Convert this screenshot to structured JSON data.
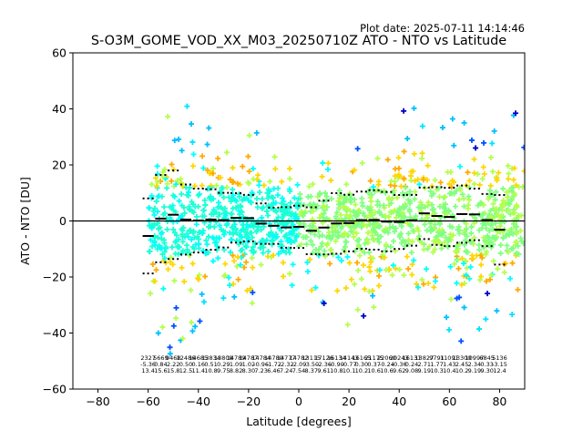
{
  "header": {
    "plot_date": "Plot date: 2025-07-11 14:14:46",
    "title": "S-O3M_GOME_VOD_XX_M03_20250710Z ATO - NTO vs Latitude"
  },
  "chart_data": {
    "type": "scatter",
    "title": "S-O3M_GOME_VOD_XX_M03_20250710Z ATO - NTO vs Latitude",
    "xlabel": "Latitude [degrees]",
    "ylabel": "ATO - NTO [DU]",
    "xlim": [
      -90,
      90
    ],
    "ylim": [
      -60,
      60
    ],
    "x_ticks": [
      -80,
      -60,
      -40,
      -20,
      0,
      20,
      40,
      60,
      80
    ],
    "y_ticks": [
      -60,
      -40,
      -20,
      0,
      20,
      40,
      60
    ],
    "x_tick_labels": [
      "−80",
      "−60",
      "−40",
      "−20",
      "0",
      "20",
      "40",
      "60",
      "80"
    ],
    "y_tick_labels": [
      "−60",
      "−40",
      "−20",
      "0",
      "20",
      "40",
      "60"
    ],
    "grid": false,
    "zero_line": 0,
    "marker": "+",
    "scatter_envelope": [
      {
        "lat": -60,
        "hi": 10,
        "lo": -40
      },
      {
        "lat": -55,
        "hi": 28,
        "lo": -44
      },
      {
        "lat": -50,
        "hi": 50,
        "lo": -50
      },
      {
        "lat": -45,
        "hi": 45,
        "lo": -52
      },
      {
        "lat": -40,
        "hi": 34,
        "lo": -42
      },
      {
        "lat": -35,
        "hi": 40,
        "lo": -30
      },
      {
        "lat": -30,
        "hi": 33,
        "lo": -28
      },
      {
        "lat": -25,
        "hi": 30,
        "lo": -28
      },
      {
        "lat": -20,
        "hi": 36,
        "lo": -32
      },
      {
        "lat": -15,
        "hi": 30,
        "lo": -28
      },
      {
        "lat": -10,
        "hi": 24,
        "lo": -26
      },
      {
        "lat": -5,
        "hi": 20,
        "lo": -24
      },
      {
        "lat": 0,
        "hi": 22,
        "lo": -25
      },
      {
        "lat": 5,
        "hi": 24,
        "lo": -28
      },
      {
        "lat": 10,
        "hi": 26,
        "lo": -30
      },
      {
        "lat": 15,
        "hi": 28,
        "lo": -34
      },
      {
        "lat": 20,
        "hi": 28,
        "lo": -38
      },
      {
        "lat": 25,
        "hi": 30,
        "lo": -36
      },
      {
        "lat": 30,
        "hi": 30,
        "lo": -34
      },
      {
        "lat": 35,
        "hi": 32,
        "lo": -34
      },
      {
        "lat": 40,
        "hi": 42,
        "lo": -32
      },
      {
        "lat": 45,
        "hi": 45,
        "lo": -34
      },
      {
        "lat": 50,
        "hi": 36,
        "lo": -36
      },
      {
        "lat": 55,
        "hi": 32,
        "lo": -36
      },
      {
        "lat": 60,
        "hi": 36,
        "lo": -40
      },
      {
        "lat": 65,
        "hi": 42,
        "lo": -44
      },
      {
        "lat": 70,
        "hi": 40,
        "lo": -40
      },
      {
        "lat": 75,
        "hi": 36,
        "lo": -38
      },
      {
        "lat": 80,
        "hi": 38,
        "lo": -36
      },
      {
        "lat": 85,
        "hi": 42,
        "lo": -34
      },
      {
        "lat": 90,
        "hi": 30,
        "lo": -34
      }
    ],
    "scatter_colors": [
      "#00ffff",
      "#1affd5",
      "#80ff80",
      "#b3ff4d",
      "#ffd700",
      "#ffaa00",
      "#00bfff",
      "#0050ff",
      "#0000c8",
      "#00e5ff"
    ],
    "bins": [
      {
        "lat": -60,
        "mean": -5.36,
        "std": 13.4,
        "count": "2327"
      },
      {
        "lat": -55,
        "mean": 0.84,
        "std": 15.6,
        "count": "5669"
      },
      {
        "lat": -50,
        "mean": 2.22,
        "std": 15.8,
        "count": "9468"
      },
      {
        "lat": -45,
        "mean": 0.5,
        "std": 12.5,
        "count": "12486"
      },
      {
        "lat": -40,
        "mean": 0.16,
        "std": 11.4,
        "count": "14685"
      },
      {
        "lat": -35,
        "mean": 0.51,
        "std": 10.8,
        "count": "13834"
      },
      {
        "lat": -30,
        "mean": 0.29,
        "std": 9.75,
        "count": "13808"
      },
      {
        "lat": -25,
        "mean": 1.09,
        "std": 8.82,
        "count": "14789"
      },
      {
        "lat": -20,
        "mean": 1.02,
        "std": 8.3,
        "count": "14787"
      },
      {
        "lat": -15,
        "mean": -0.96,
        "std": 7.23,
        "count": "14784"
      },
      {
        "lat": -10,
        "mean": -1.72,
        "std": 6.46,
        "count": "14780"
      },
      {
        "lat": -5,
        "mean": -2.32,
        "std": 7.24,
        "count": "14777"
      },
      {
        "lat": 0,
        "mean": -2.09,
        "std": 7.54,
        "count": "14782"
      },
      {
        "lat": 5,
        "mean": -3.5,
        "std": 8.37,
        "count": "13115"
      },
      {
        "lat": 10,
        "mean": -2.36,
        "std": 9.61,
        "count": "17126"
      },
      {
        "lat": 15,
        "mean": -0.9,
        "std": 10.8,
        "count": "16134"
      },
      {
        "lat": 20,
        "mean": -0.77,
        "std": 10.1,
        "count": "14143"
      },
      {
        "lat": 25,
        "mean": 0.3,
        "std": 10.2,
        "count": "16165"
      },
      {
        "lat": 30,
        "mean": 0.37,
        "std": 10.6,
        "count": "21175"
      },
      {
        "lat": 35,
        "mean": -0.24,
        "std": 10.6,
        "count": "22060"
      },
      {
        "lat": 40,
        "mean": -0.36,
        "std": 9.62,
        "count": "20243"
      },
      {
        "lat": 45,
        "mean": 0.24,
        "std": 9.08,
        "count": "16131"
      },
      {
        "lat": 50,
        "mean": 2.71,
        "std": 9.19,
        "count": "13827"
      },
      {
        "lat": 55,
        "mean": 1.77,
        "std": 10.3,
        "count": "9791"
      },
      {
        "lat": 60,
        "mean": 1.43,
        "std": 10.4,
        "count": "11091"
      },
      {
        "lat": 65,
        "mean": 2.45,
        "std": 10.2,
        "count": "13300"
      },
      {
        "lat": 70,
        "mean": 2.34,
        "std": 9.19,
        "count": "10997"
      },
      {
        "lat": 75,
        "mean": 0.33,
        "std": 9.3,
        "count": "6845"
      },
      {
        "lat": 80,
        "mean": -3.15,
        "std": 12.4,
        "count": "5136"
      }
    ]
  }
}
